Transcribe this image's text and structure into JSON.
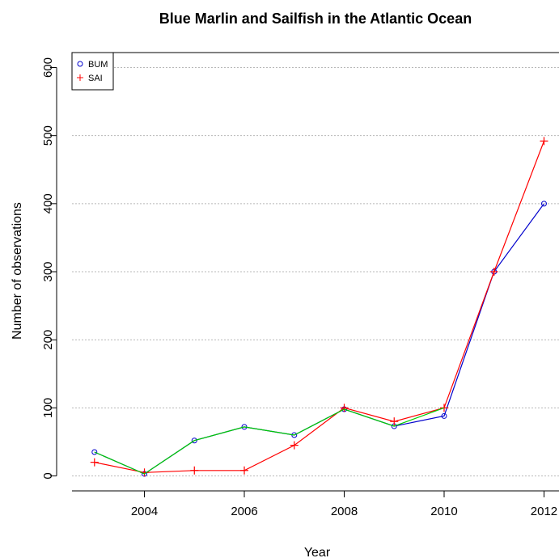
{
  "chart_data": {
    "type": "line",
    "title": "Blue Marlin and Sailfish in the Atlantic Ocean",
    "xlabel": "Year",
    "ylabel": "Number of observations",
    "xlim": [
      2002.55,
      2012.3
    ],
    "ylim": [
      -22,
      622
    ],
    "x_ticks": [
      2004,
      2006,
      2008,
      2010,
      2012
    ],
    "y_ticks": [
      0,
      100,
      200,
      300,
      400,
      500,
      600
    ],
    "grid": "horizontal dotted",
    "legend_position": "top-left",
    "series": [
      {
        "name": "BUM",
        "color": "#0000cc",
        "marker": "circle",
        "x": [
          2003,
          2004,
          2005,
          2006,
          2007,
          2008,
          2009,
          2010,
          2011,
          2012
        ],
        "y": [
          35,
          3,
          52,
          72,
          60,
          98,
          73,
          88,
          300,
          400
        ]
      },
      {
        "name": "SAI",
        "color": "#ff0000",
        "marker": "plus",
        "x": [
          2003,
          2004,
          2005,
          2006,
          2007,
          2008,
          2009,
          2010,
          2011,
          2012
        ],
        "y": [
          20,
          5,
          8,
          8,
          45,
          100,
          80,
          100,
          300,
          492
        ]
      },
      {
        "name": "",
        "color": "#00cc00",
        "marker": "none",
        "x": [
          2003,
          2004,
          2005,
          2006,
          2007,
          2008,
          2009,
          2010
        ],
        "y": [
          35,
          3,
          52,
          72,
          60,
          98,
          73,
          100
        ]
      }
    ]
  }
}
